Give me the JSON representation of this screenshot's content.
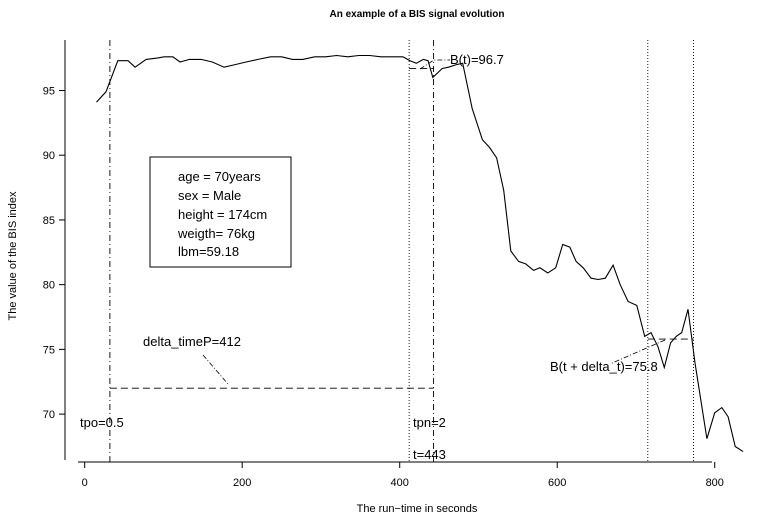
{
  "chart_data": {
    "type": "line",
    "title": "An example of a BIS signal evolution",
    "xlabel": "The run−time in seconds",
    "ylabel": "The value of the BIS index",
    "xlim": [
      -25,
      860
    ],
    "ylim": [
      66.3,
      98.9
    ],
    "xticks": [
      0,
      200,
      400,
      600,
      800
    ],
    "xtick_labels": [
      "0",
      "200",
      "400",
      "600",
      "800"
    ],
    "yticks": [
      70,
      75,
      80,
      85,
      90,
      95
    ],
    "ytick_labels": [
      "70",
      "75",
      "80",
      "85",
      "90",
      "95"
    ],
    "grid": false,
    "series": [
      {
        "x": [
          15,
          27,
          42,
          55,
          64,
          78,
          92,
          101,
          112,
          121,
          133,
          148,
          162,
          177,
          191,
          205,
          220,
          236,
          250,
          264,
          277,
          292,
          306,
          320,
          334,
          348,
          362,
          376,
          390,
          404,
          413,
          421,
          430,
          436,
          442,
          454,
          462,
          472,
          480,
          492,
          505,
          514,
          523,
          532,
          541,
          551,
          560,
          570,
          578,
          588,
          598,
          607,
          616,
          624,
          633,
          643,
          652,
          661,
          671,
          680,
          690,
          701,
          711,
          719,
          728,
          736,
          744,
          751,
          758,
          766,
          775,
          790,
          800,
          809,
          817,
          826,
          836
        ],
        "y": [
          94.1,
          94.9,
          97.3,
          97.3,
          96.8,
          97.4,
          97.5,
          97.6,
          97.6,
          97.2,
          97.4,
          97.4,
          97.2,
          96.8,
          97.0,
          97.2,
          97.4,
          97.6,
          97.6,
          97.4,
          97.4,
          97.6,
          97.6,
          97.7,
          97.6,
          97.7,
          97.7,
          97.6,
          97.6,
          97.6,
          97.3,
          97.1,
          97.4,
          97.3,
          96.0,
          96.7,
          96.8,
          97.0,
          97.1,
          93.6,
          91.2,
          90.6,
          89.8,
          87.3,
          82.6,
          81.8,
          81.6,
          81.1,
          81.3,
          80.9,
          81.3,
          83.1,
          82.9,
          81.8,
          81.3,
          80.5,
          80.4,
          80.5,
          81.5,
          80.0,
          78.7,
          78.4,
          76.0,
          76.3,
          75.2,
          73.6,
          75.5,
          76.0,
          76.3,
          78.1,
          73.9,
          68.1,
          70.1,
          70.5,
          69.8,
          67.5,
          67.1
        ]
      }
    ],
    "verticals": [
      {
        "x": 32,
        "style": "dashdot"
      },
      {
        "x": 412,
        "style": "dotted"
      },
      {
        "x": 443,
        "style": "dashdot"
      },
      {
        "x": 715,
        "style": "dotted"
      },
      {
        "x": 773,
        "style": "dotted"
      }
    ],
    "segments": [
      {
        "x": [
          32,
          443
        ],
        "y": [
          72.0,
          72.0
        ],
        "style": "dashed"
      },
      {
        "x": [
          412,
          443
        ],
        "y": [
          96.7,
          96.7
        ],
        "style": "dashed"
      },
      {
        "x": [
          715,
          773
        ],
        "y": [
          75.8,
          75.8
        ],
        "style": "dashed"
      }
    ],
    "annotations": {
      "bt": "B(t)=96.7",
      "bt_delta": "B(t + delta_t)=75.8",
      "delta_time": "delta_timeP=412",
      "tpo": "tpo=0.5",
      "tpn": "tpn=2",
      "t": "t=443"
    },
    "info_box": [
      "age = 70years",
      "sex = Male",
      "height = 174cm",
      "weigth= 76kg",
      "lbm=59.18"
    ]
  }
}
